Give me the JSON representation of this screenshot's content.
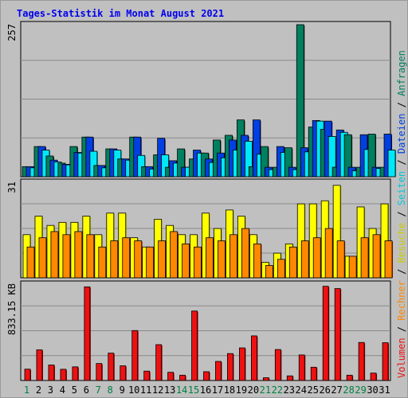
{
  "colors": {
    "besuche": "#ffff00",
    "seiten": "#00e8f8",
    "anfragen": "#008060",
    "dateien": "#0040e0",
    "rechner": "#ff8800",
    "volumen": "#ee1111",
    "weekday": "#000000",
    "weekend": "#008040",
    "title": "#0000ee"
  },
  "chart_data": {
    "type": "bar",
    "title": "Tages-Statistik im Monat August 2021",
    "categories": [
      "1",
      "2",
      "3",
      "4",
      "5",
      "6",
      "7",
      "8",
      "9",
      "10",
      "11",
      "12",
      "13",
      "14",
      "15",
      "16",
      "17",
      "18",
      "19",
      "20",
      "21",
      "22",
      "23",
      "24",
      "25",
      "26",
      "27",
      "28",
      "29",
      "30",
      "31"
    ],
    "weekend_days": [
      "1",
      "7",
      "8",
      "14",
      "15",
      "21",
      "22",
      "28",
      "29"
    ],
    "panels": [
      {
        "id": "requests",
        "axis_max_label": "257",
        "ylim": [
          0,
          257
        ],
        "series": [
          {
            "name": "Anfragen",
            "values": [
              17,
              51,
              35,
              23,
              51,
              67,
              19,
              47,
              30,
              67,
              17,
              37,
              16,
              47,
              30,
              40,
              62,
              70,
              96,
              17,
              51,
              16,
              49,
              257,
              84,
              80,
              16,
              71,
              16,
              72,
              16
            ]
          },
          {
            "name": "Dateien",
            "values": [
              17,
              51,
              28,
              21,
              41,
              67,
              19,
              47,
              30,
              67,
              17,
              65,
              27,
              16,
              45,
              30,
              40,
              62,
              70,
              96,
              16,
              51,
              16,
              49,
              95,
              94,
              79,
              16,
              71,
              16,
              72
            ]
          },
          {
            "name": "Seiten",
            "values": [
              15,
              45,
              25,
              20,
              40,
              43,
              15,
              45,
              28,
              36,
              13,
              37,
              23,
              16,
              40,
              24,
              32,
              45,
              60,
              38,
              12,
              41,
              12,
              42,
              94,
              68,
              75,
              10,
              46,
              14,
              45
            ]
          }
        ]
      },
      {
        "id": "visits",
        "axis_max_label": "31",
        "ylim": [
          0,
          31
        ],
        "series": [
          {
            "name": "Besuche",
            "values": [
              14,
              20,
              17,
              18,
              18,
              20,
              14,
              21,
              21,
              13,
              10,
              19,
              17,
              14,
              14,
              21,
              16,
              22,
              20,
              14,
              5,
              8,
              11,
              24,
              24,
              25,
              30,
              7,
              23,
              16,
              24
            ]
          },
          {
            "name": "Rechner",
            "values": [
              10,
              13,
              15,
              14,
              15,
              14,
              10,
              12,
              13,
              12,
              10,
              12,
              15,
              11,
              10,
              13,
              12,
              14,
              16,
              11,
              4,
              6,
              10,
              12,
              13,
              16,
              12,
              7,
              13,
              14,
              12
            ]
          }
        ]
      },
      {
        "id": "volume",
        "axis_max_label": "833.15 KB",
        "ylim": [
          0,
          833.15
        ],
        "series": [
          {
            "name": "Volumen",
            "values": [
              98,
              265,
              134,
              97,
              118,
              810,
              147,
              237,
              127,
              432,
              81,
              310,
              71,
              46,
              601,
              76,
              165,
              233,
              282,
              386,
              24,
              268,
              40,
              221,
              115,
              815,
              795,
              46,
              329,
              64,
              327
            ]
          }
        ]
      }
    ],
    "right_legend": [
      {
        "text": "Volumen",
        "color": "#ee1111"
      },
      {
        "text": " / ",
        "color": "#000000"
      },
      {
        "text": "Rechner",
        "color": "#ff8800"
      },
      {
        "text": " / ",
        "color": "#000000"
      },
      {
        "text": "Besuche",
        "color": "#cccc00"
      },
      {
        "text": " / ",
        "color": "#000000"
      },
      {
        "text": "Seiten",
        "color": "#00c8d8"
      },
      {
        "text": " / ",
        "color": "#000000"
      },
      {
        "text": "Dateien",
        "color": "#0040e0"
      },
      {
        "text": " / ",
        "color": "#000000"
      },
      {
        "text": "Anfragen",
        "color": "#008060"
      }
    ]
  }
}
